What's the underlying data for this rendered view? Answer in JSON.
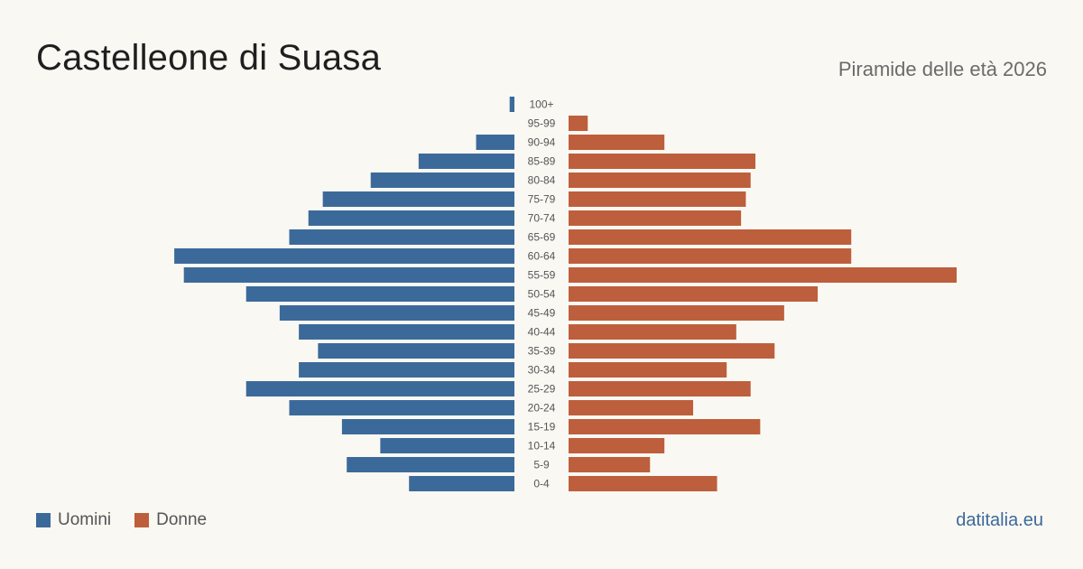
{
  "header": {
    "title": "Castelleone di Suasa",
    "subtitle": "Piramide delle età 2026"
  },
  "colors": {
    "men": "#3b6a9a",
    "women": "#bd5f3c",
    "label": "#555555"
  },
  "legend": {
    "men_label": "Uomini",
    "women_label": "Donne"
  },
  "brand": "datitalia.eu",
  "chart_data": {
    "type": "bar",
    "orientation": "horizontal-pyramid",
    "categories": [
      "100+",
      "95-99",
      "90-94",
      "85-89",
      "80-84",
      "75-79",
      "70-74",
      "65-69",
      "60-64",
      "55-59",
      "50-54",
      "45-49",
      "40-44",
      "35-39",
      "30-34",
      "25-29",
      "20-24",
      "15-19",
      "10-14",
      "5-9",
      "0-4"
    ],
    "series": [
      {
        "name": "Uomini",
        "values": [
          1,
          0,
          8,
          20,
          30,
          40,
          43,
          47,
          71,
          69,
          56,
          49,
          45,
          41,
          45,
          56,
          47,
          36,
          28,
          35,
          22
        ]
      },
      {
        "name": "Donne",
        "values": [
          0,
          4,
          20,
          39,
          38,
          37,
          36,
          59,
          59,
          81,
          52,
          45,
          35,
          43,
          33,
          38,
          26,
          40,
          20,
          17,
          31
        ]
      }
    ],
    "xlim": [
      0,
      81
    ],
    "legend_position": "bottom-left",
    "grid": false
  }
}
